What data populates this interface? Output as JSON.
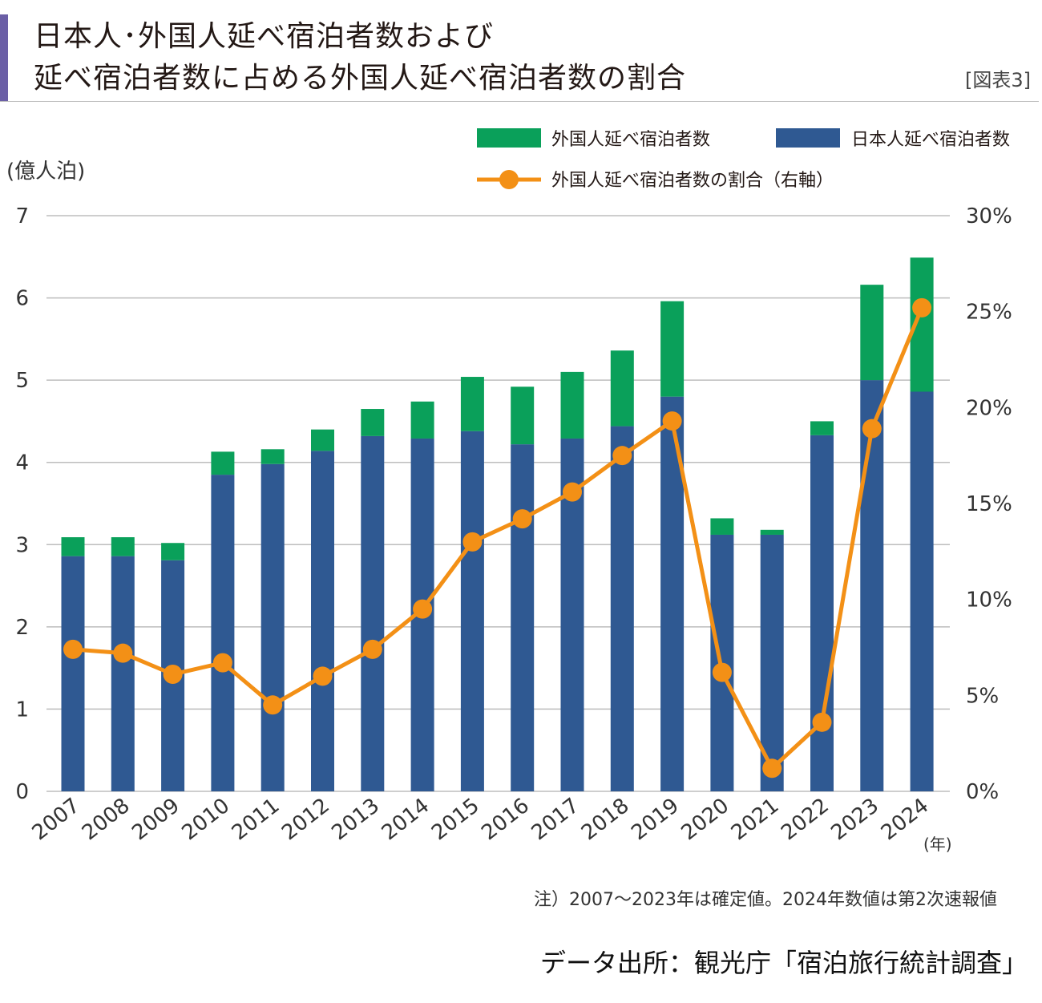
{
  "header": {
    "title_line1": "日本人･外国人延べ宿泊者数および",
    "title_line2": "延べ宿泊者数に占める外国人延べ宿泊者数の割合",
    "figure_label": "[図表3]"
  },
  "colors": {
    "foreign": "#0aa05a",
    "japanese": "#2f5992",
    "ratio": "#f39016",
    "accent": "#6b5fa6"
  },
  "chart_data": {
    "type": "bar",
    "stacked": true,
    "categories": [
      "2007",
      "2008",
      "2009",
      "2010",
      "2011",
      "2012",
      "2013",
      "2014",
      "2015",
      "2016",
      "2017",
      "2018",
      "2019",
      "2020",
      "2021",
      "2022",
      "2023",
      "2024"
    ],
    "xlabel": "(年)",
    "ylabel_left": "(億人泊)",
    "ylim_left": [
      0,
      7
    ],
    "yticks_left": [
      "0",
      "1",
      "2",
      "3",
      "4",
      "5",
      "6",
      "7"
    ],
    "ylim_right": [
      0,
      30
    ],
    "yticks_right": [
      "0%",
      "5%",
      "10%",
      "15%",
      "20%",
      "25%",
      "30%"
    ],
    "grid": true,
    "legend_position": "top-right",
    "series": [
      {
        "name": "日本人延べ宿泊者数",
        "kind": "bar",
        "axis": "left",
        "values": [
          2.86,
          2.86,
          2.81,
          3.85,
          3.98,
          4.14,
          4.32,
          4.29,
          4.38,
          4.22,
          4.29,
          4.44,
          4.8,
          3.12,
          3.12,
          4.33,
          5.0,
          4.86
        ]
      },
      {
        "name": "外国人延べ宿泊者数",
        "kind": "bar",
        "axis": "left",
        "values": [
          0.23,
          0.23,
          0.21,
          0.28,
          0.18,
          0.26,
          0.33,
          0.45,
          0.66,
          0.7,
          0.81,
          0.92,
          1.16,
          0.2,
          0.06,
          0.17,
          1.16,
          1.63
        ]
      },
      {
        "name": "外国人延べ宿泊者数の割合（右軸）",
        "kind": "line",
        "axis": "right",
        "values": [
          7.4,
          7.2,
          6.1,
          6.7,
          4.5,
          6.0,
          7.4,
          9.5,
          13.0,
          14.2,
          15.6,
          17.5,
          19.3,
          6.2,
          1.2,
          3.6,
          18.9,
          25.2
        ]
      }
    ]
  },
  "note": "注）2007～2023年は確定値。2024年数値は第2次速報値",
  "source": "データ出所：観光庁「宿泊旅行統計調査」"
}
